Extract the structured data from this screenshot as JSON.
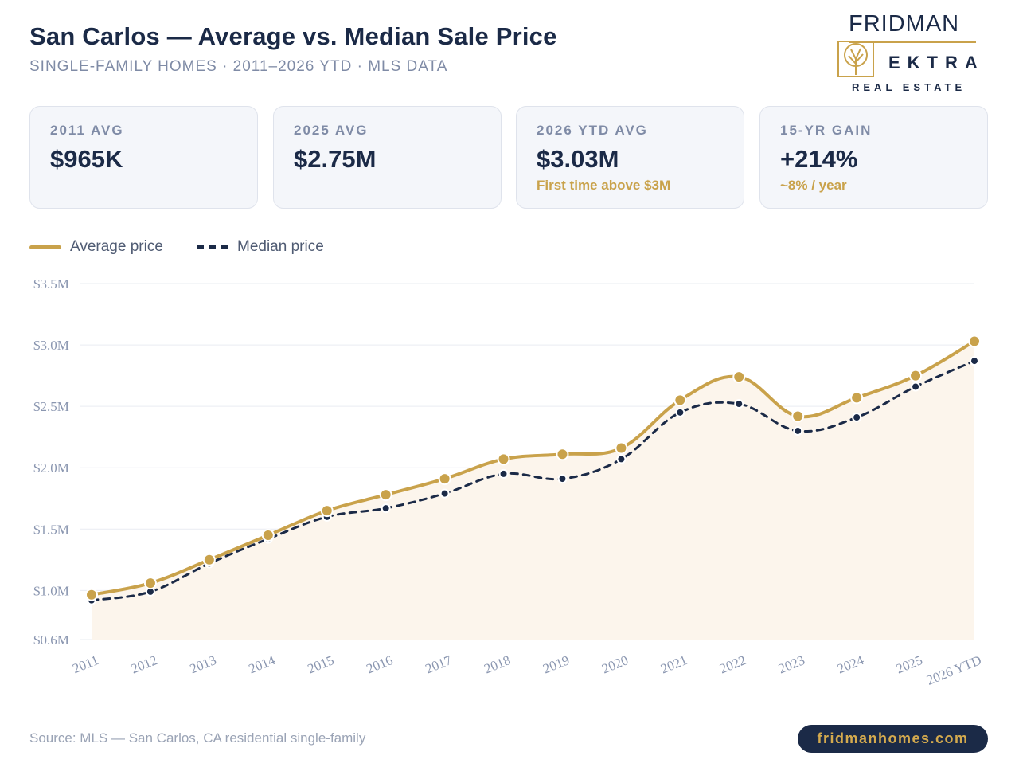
{
  "header": {
    "title": "San Carlos — Average vs. Median Sale Price",
    "subtitle": "SINGLE-FAMILY HOMES · 2011–2026 YTD · MLS DATA"
  },
  "logo": {
    "brand": "FRIDMAN",
    "name": "EKTRA",
    "tagline": "REAL ESTATE"
  },
  "cards": [
    {
      "label": "2011 AVG",
      "value": "$965K",
      "note": ""
    },
    {
      "label": "2025 AVG",
      "value": "$2.75M",
      "note": ""
    },
    {
      "label": "2026 YTD AVG",
      "value": "$3.03M",
      "note": "First time above $3M"
    },
    {
      "label": "15-YR GAIN",
      "value": "+214%",
      "note": "~8% / year"
    }
  ],
  "legend": {
    "average": "Average price",
    "median": "Median price"
  },
  "chart_data": {
    "type": "line",
    "categories": [
      "2011",
      "2012",
      "2013",
      "2014",
      "2015",
      "2016",
      "2017",
      "2018",
      "2019",
      "2020",
      "2021",
      "2022",
      "2023",
      "2024",
      "2025",
      "2026 YTD"
    ],
    "series": [
      {
        "name": "Average price",
        "values": [
          0.965,
          1.06,
          1.25,
          1.45,
          1.65,
          1.78,
          1.91,
          2.07,
          2.11,
          2.16,
          2.55,
          2.74,
          2.42,
          2.57,
          2.75,
          3.03
        ],
        "color": "#c9a24b",
        "style": "solid",
        "area_fill": true
      },
      {
        "name": "Median price",
        "values": [
          0.92,
          0.99,
          1.22,
          1.42,
          1.6,
          1.67,
          1.79,
          1.95,
          1.91,
          2.07,
          2.45,
          2.52,
          2.3,
          2.41,
          2.66,
          2.87
        ],
        "color": "#1b2a47",
        "style": "dashed"
      }
    ],
    "y_unit": "$M",
    "ylim": [
      0.6,
      3.5
    ],
    "y_ticks": [
      {
        "value": 0.6,
        "label": "$0.6M"
      },
      {
        "value": 1.0,
        "label": "$1.0M"
      },
      {
        "value": 1.5,
        "label": "$1.5M"
      },
      {
        "value": 2.0,
        "label": "$2.0M"
      },
      {
        "value": 2.5,
        "label": "$2.5M"
      },
      {
        "value": 3.0,
        "label": "$3.0M"
      },
      {
        "value": 3.5,
        "label": "$3.5M"
      }
    ],
    "grid": true,
    "legend_position": "top-left"
  },
  "footer": {
    "source": "Source: MLS — San Carlos, CA residential single-family",
    "website": "fridmanhomes.com"
  },
  "colors": {
    "accent_gold": "#c9a24b",
    "navy": "#1b2a47",
    "muted": "#7f8ba6",
    "area_fill": "#fcf5ec"
  }
}
